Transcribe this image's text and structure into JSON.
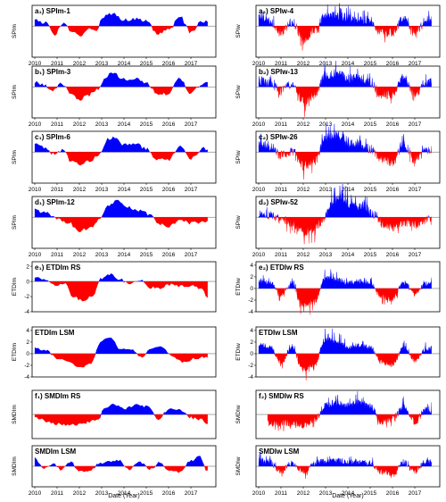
{
  "figure": {
    "xlabel": "Date (Year)"
  },
  "chart_data": [
    {
      "type": "area",
      "title": "a₁) SPIm-1",
      "ylabel": "SPIm",
      "x_range": [
        2010,
        2018
      ],
      "x_ticks": [
        "2010",
        "2011",
        "2012",
        "2013",
        "2014",
        "2015",
        "2016",
        "2017"
      ],
      "y_ticks": [],
      "ylim": [
        -3,
        2
      ],
      "colors": {
        "positive": "#0000ff",
        "negative": "#ff0000"
      },
      "pattern": "spim1",
      "seed": 1
    },
    {
      "type": "area",
      "title": "a₂) SPIw-4",
      "ylabel": "SPIw",
      "x_range": [
        2010,
        2018
      ],
      "x_ticks": [
        "2010",
        "2011",
        "2012",
        "2013",
        "2014",
        "2015",
        "2016",
        "2017"
      ],
      "y_ticks": [],
      "ylim": [
        -3,
        2
      ],
      "colors": {
        "positive": "#0000ff",
        "negative": "#ff0000"
      },
      "pattern": "spiw4",
      "seed": 2
    },
    {
      "type": "area",
      "title": "b₁) SPIm-3",
      "ylabel": "SPIm",
      "x_range": [
        2010,
        2018
      ],
      "x_ticks": [
        "2010",
        "2011",
        "2012",
        "2013",
        "2014",
        "2015",
        "2016",
        "2017"
      ],
      "y_ticks": [],
      "ylim": [
        -3,
        2
      ],
      "colors": {
        "positive": "#0000ff",
        "negative": "#ff0000"
      },
      "pattern": "spim3",
      "seed": 3
    },
    {
      "type": "area",
      "title": "b₂) SPIw-13",
      "ylabel": "SPIw",
      "x_range": [
        2010,
        2018
      ],
      "x_ticks": [
        "2010",
        "2011",
        "2012",
        "2013",
        "2014",
        "2015",
        "2016",
        "2017"
      ],
      "y_ticks": [],
      "ylim": [
        -3,
        2
      ],
      "colors": {
        "positive": "#0000ff",
        "negative": "#ff0000"
      },
      "pattern": "spiw13",
      "seed": 4
    },
    {
      "type": "area",
      "title": "c₁) SPIm-6",
      "ylabel": "SPIm",
      "x_range": [
        2010,
        2018
      ],
      "x_ticks": [
        "2010",
        "2011",
        "2012",
        "2013",
        "2014",
        "2015",
        "2016",
        "2017"
      ],
      "y_ticks": [],
      "ylim": [
        -3,
        2
      ],
      "colors": {
        "positive": "#0000ff",
        "negative": "#ff0000"
      },
      "pattern": "spim6",
      "seed": 5
    },
    {
      "type": "area",
      "title": "c₂) SPIw-26",
      "ylabel": "SPIw",
      "x_range": [
        2010,
        2018
      ],
      "x_ticks": [
        "2010",
        "2011",
        "2012",
        "2013",
        "2014",
        "2015",
        "2016",
        "2017"
      ],
      "y_ticks": [],
      "ylim": [
        -3,
        2
      ],
      "colors": {
        "positive": "#0000ff",
        "negative": "#ff0000"
      },
      "pattern": "spiw26",
      "seed": 6
    },
    {
      "type": "area",
      "title": "d₁) SPIm-12",
      "ylabel": "SPIm",
      "x_range": [
        2010,
        2018
      ],
      "x_ticks": [
        "2010",
        "2011",
        "2012",
        "2013",
        "2014",
        "2015",
        "2016",
        "2017"
      ],
      "y_ticks": [],
      "ylim": [
        -3,
        2
      ],
      "colors": {
        "positive": "#0000ff",
        "negative": "#ff0000"
      },
      "pattern": "spim12",
      "seed": 7
    },
    {
      "type": "area",
      "title": "d₂) SPIw-52",
      "ylabel": "SPIw",
      "x_range": [
        2010,
        2018
      ],
      "x_ticks": [
        "2010",
        "2011",
        "2012",
        "2013",
        "2014",
        "2015",
        "2016",
        "2017"
      ],
      "y_ticks": [],
      "ylim": [
        -3,
        2
      ],
      "colors": {
        "positive": "#0000ff",
        "negative": "#ff0000"
      },
      "pattern": "spiw52",
      "seed": 8
    },
    {
      "type": "area",
      "title": "e₁) ETDIm RS",
      "ylabel": "ETDIm",
      "x_range": [
        2010,
        2018
      ],
      "x_ticks": [],
      "y_ticks": [
        "2",
        "0",
        "-2",
        "-4"
      ],
      "ylim": [
        -4,
        2.6
      ],
      "colors": {
        "positive": "#0000ff",
        "negative": "#ff0000"
      },
      "pattern": "etdim_rs",
      "seed": 9
    },
    {
      "type": "area",
      "title": "e₂) ETDIw RS",
      "ylabel": "ETDIw",
      "x_range": [
        2010,
        2018
      ],
      "x_ticks": [],
      "y_ticks": [
        "4",
        "2",
        "0",
        "-2",
        "-4"
      ],
      "ylim": [
        -4,
        4.6
      ],
      "colors": {
        "positive": "#0000ff",
        "negative": "#ff0000"
      },
      "pattern": "etdiw_rs",
      "seed": 10
    },
    {
      "type": "area",
      "title": "ETDIm LSM",
      "ylabel": "ETDIm",
      "x_range": [
        2010,
        2018
      ],
      "x_ticks": [],
      "y_ticks": [
        "4",
        "2",
        "0",
        "-2",
        "-4"
      ],
      "ylim": [
        -4,
        4.6
      ],
      "colors": {
        "positive": "#0000ff",
        "negative": "#ff0000"
      },
      "pattern": "etdim_lsm",
      "seed": 11
    },
    {
      "type": "area",
      "title": "ETDIw LSM",
      "ylabel": "ETDIw",
      "x_range": [
        2010,
        2018
      ],
      "x_ticks": [],
      "y_ticks": [
        "4",
        "2",
        "0",
        "-2",
        "-4"
      ],
      "ylim": [
        -4,
        4.6
      ],
      "colors": {
        "positive": "#0000ff",
        "negative": "#ff0000"
      },
      "pattern": "etdiw_lsm",
      "seed": 12
    },
    {
      "type": "area",
      "title": "f₁) SMDIm RS",
      "ylabel": "SMDIm",
      "x_range": [
        2010,
        2018
      ],
      "x_ticks": [],
      "y_ticks": [],
      "ylim": [
        -3,
        3
      ],
      "colors": {
        "positive": "#0000ff",
        "negative": "#ff0000"
      },
      "pattern": "smdim_rs",
      "seed": 13
    },
    {
      "type": "area",
      "title": "f₂) SMDIw RS",
      "ylabel": "SMDIw",
      "x_range": [
        2010,
        2018
      ],
      "x_ticks": [],
      "y_ticks": [],
      "ylim": [
        -3,
        3
      ],
      "colors": {
        "positive": "#0000ff",
        "negative": "#ff0000"
      },
      "pattern": "smdiw_rs",
      "seed": 14
    },
    {
      "type": "area",
      "title": "SMDIm LSM",
      "ylabel": "SMDIm",
      "x_range": [
        2010,
        2018
      ],
      "x_ticks": [
        "2010",
        "2011",
        "2012",
        "2013",
        "2014",
        "2015",
        "2016",
        "2017"
      ],
      "y_ticks": [],
      "ylim": [
        -3,
        3
      ],
      "colors": {
        "positive": "#0000ff",
        "negative": "#ff0000"
      },
      "pattern": "smdim_lsm",
      "seed": 15
    },
    {
      "type": "area",
      "title": "SMDIw LSM",
      "ylabel": "SMDIw",
      "x_range": [
        2010,
        2018
      ],
      "x_ticks": [
        "2010",
        "2011",
        "2012",
        "2013",
        "2014",
        "2015",
        "2016",
        "2017"
      ],
      "y_ticks": [],
      "ylim": [
        -3,
        3
      ],
      "colors": {
        "positive": "#0000ff",
        "negative": "#ff0000"
      },
      "pattern": "smdiw_lsm",
      "seed": 16
    }
  ]
}
